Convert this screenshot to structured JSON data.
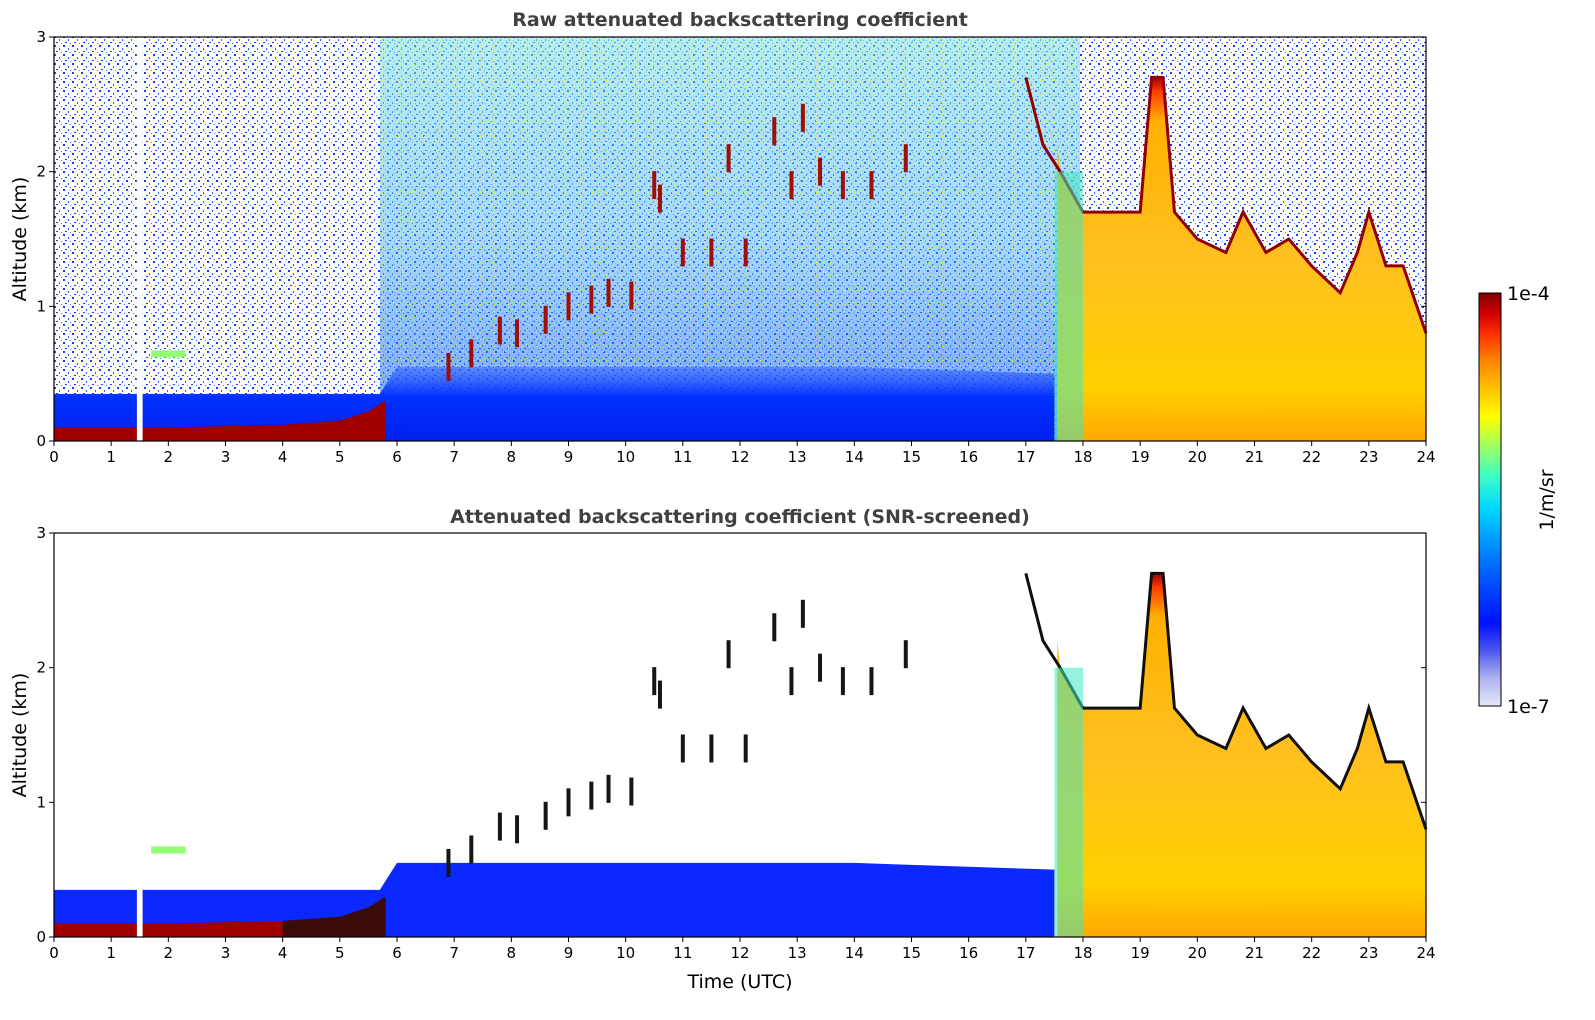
{
  "chart_data": [
    {
      "type": "heatmap",
      "title": "Raw attenuated backscattering coefficient",
      "xlabel": "",
      "ylabel": "Altitude (km)",
      "xlim": [
        0,
        24
      ],
      "ylim": [
        0,
        3
      ],
      "x_ticks": [
        "0",
        "1",
        "2",
        "3",
        "4",
        "5",
        "6",
        "7",
        "8",
        "9",
        "10",
        "11",
        "12",
        "13",
        "14",
        "15",
        "16",
        "17",
        "18",
        "19",
        "20",
        "21",
        "22",
        "23",
        "24"
      ],
      "y_ticks": [
        "0",
        "1",
        "2",
        "3"
      ],
      "grid": false,
      "surface_layer": [
        {
          "t": 0,
          "top": 0.1
        },
        {
          "t": 2,
          "top": 0.1
        },
        {
          "t": 4,
          "top": 0.12
        },
        {
          "t": 5,
          "top": 0.15
        },
        {
          "t": 5.5,
          "top": 0.22
        },
        {
          "t": 5.8,
          "top": 0.3
        }
      ],
      "boundary_layer_top": [
        {
          "t": 0,
          "h": 0.35
        },
        {
          "t": 5.7,
          "h": 0.35
        },
        {
          "t": 6,
          "h": 0.55
        },
        {
          "t": 10,
          "h": 0.55
        },
        {
          "t": 14,
          "h": 0.55
        },
        {
          "t": 17.5,
          "h": 0.5
        }
      ],
      "elevated_aerosol_layer": {
        "t_start": 1.7,
        "t_end": 2.3,
        "h": 0.65
      },
      "rising_layer_features": [
        {
          "t": 6.9,
          "h": 0.55
        },
        {
          "t": 7.3,
          "h": 0.65
        },
        {
          "t": 7.8,
          "h": 0.82
        },
        {
          "t": 8.1,
          "h": 0.8
        },
        {
          "t": 8.6,
          "h": 0.9
        },
        {
          "t": 9.0,
          "h": 1.0
        },
        {
          "t": 9.4,
          "h": 1.05
        },
        {
          "t": 9.7,
          "h": 1.1
        },
        {
          "t": 10.1,
          "h": 1.08
        },
        {
          "t": 10.5,
          "h": 1.9
        },
        {
          "t": 10.6,
          "h": 1.8
        },
        {
          "t": 11.0,
          "h": 1.4
        },
        {
          "t": 11.5,
          "h": 1.4
        },
        {
          "t": 11.8,
          "h": 2.1
        },
        {
          "t": 12.1,
          "h": 1.4
        },
        {
          "t": 12.6,
          "h": 2.3
        },
        {
          "t": 12.9,
          "h": 1.9
        },
        {
          "t": 13.1,
          "h": 2.4
        },
        {
          "t": 13.4,
          "h": 2.0
        },
        {
          "t": 13.8,
          "h": 1.9
        },
        {
          "t": 14.3,
          "h": 1.9
        },
        {
          "t": 14.9,
          "h": 2.1
        }
      ],
      "cloud_top": [
        {
          "t": 17.0,
          "h": 2.7
        },
        {
          "t": 17.3,
          "h": 2.2
        },
        {
          "t": 17.6,
          "h": 2.0
        },
        {
          "t": 18.0,
          "h": 1.7
        },
        {
          "t": 18.5,
          "h": 1.7
        },
        {
          "t": 19.0,
          "h": 1.7
        },
        {
          "t": 19.2,
          "h": 2.7
        },
        {
          "t": 19.4,
          "h": 2.7
        },
        {
          "t": 19.6,
          "h": 1.7
        },
        {
          "t": 20.0,
          "h": 1.5
        },
        {
          "t": 20.5,
          "h": 1.4
        },
        {
          "t": 20.8,
          "h": 1.7
        },
        {
          "t": 21.2,
          "h": 1.4
        },
        {
          "t": 21.6,
          "h": 1.5
        },
        {
          "t": 22.0,
          "h": 1.3
        },
        {
          "t": 22.5,
          "h": 1.1
        },
        {
          "t": 22.8,
          "h": 1.4
        },
        {
          "t": 23.0,
          "h": 1.7
        },
        {
          "t": 23.3,
          "h": 1.3
        },
        {
          "t": 23.6,
          "h": 1.3
        },
        {
          "t": 24.0,
          "h": 0.8
        }
      ],
      "data_gap": {
        "t_start": 1.45,
        "t_end": 1.55
      }
    },
    {
      "type": "heatmap",
      "title": "Attenuated backscattering coefficient (SNR-screened)",
      "xlabel": "Time (UTC)",
      "ylabel": "Altitude (km)",
      "xlim": [
        0,
        24
      ],
      "ylim": [
        0,
        3
      ],
      "x_ticks": [
        "0",
        "1",
        "2",
        "3",
        "4",
        "5",
        "6",
        "7",
        "8",
        "9",
        "10",
        "11",
        "12",
        "13",
        "14",
        "15",
        "16",
        "17",
        "18",
        "19",
        "20",
        "21",
        "22",
        "23",
        "24"
      ],
      "y_ticks": [
        "0",
        "1",
        "2",
        "3"
      ],
      "grid": false,
      "screened": true,
      "data_gap": {
        "t_start": 1.45,
        "t_end": 1.55
      }
    }
  ],
  "colorbar": {
    "label": "1/m/sr",
    "max_label": "1e-4",
    "min_label": "1e-7",
    "scale": "log",
    "range": [
      1e-07,
      0.0001
    ],
    "colors": [
      "#e6e8f8",
      "#aab0ee",
      "#4450ee",
      "#0010ff",
      "#0050ff",
      "#0098ff",
      "#00d8ff",
      "#40ffc0",
      "#a0ff60",
      "#ffff00",
      "#ffc000",
      "#ff8000",
      "#ff3000",
      "#d00000",
      "#800000"
    ]
  }
}
